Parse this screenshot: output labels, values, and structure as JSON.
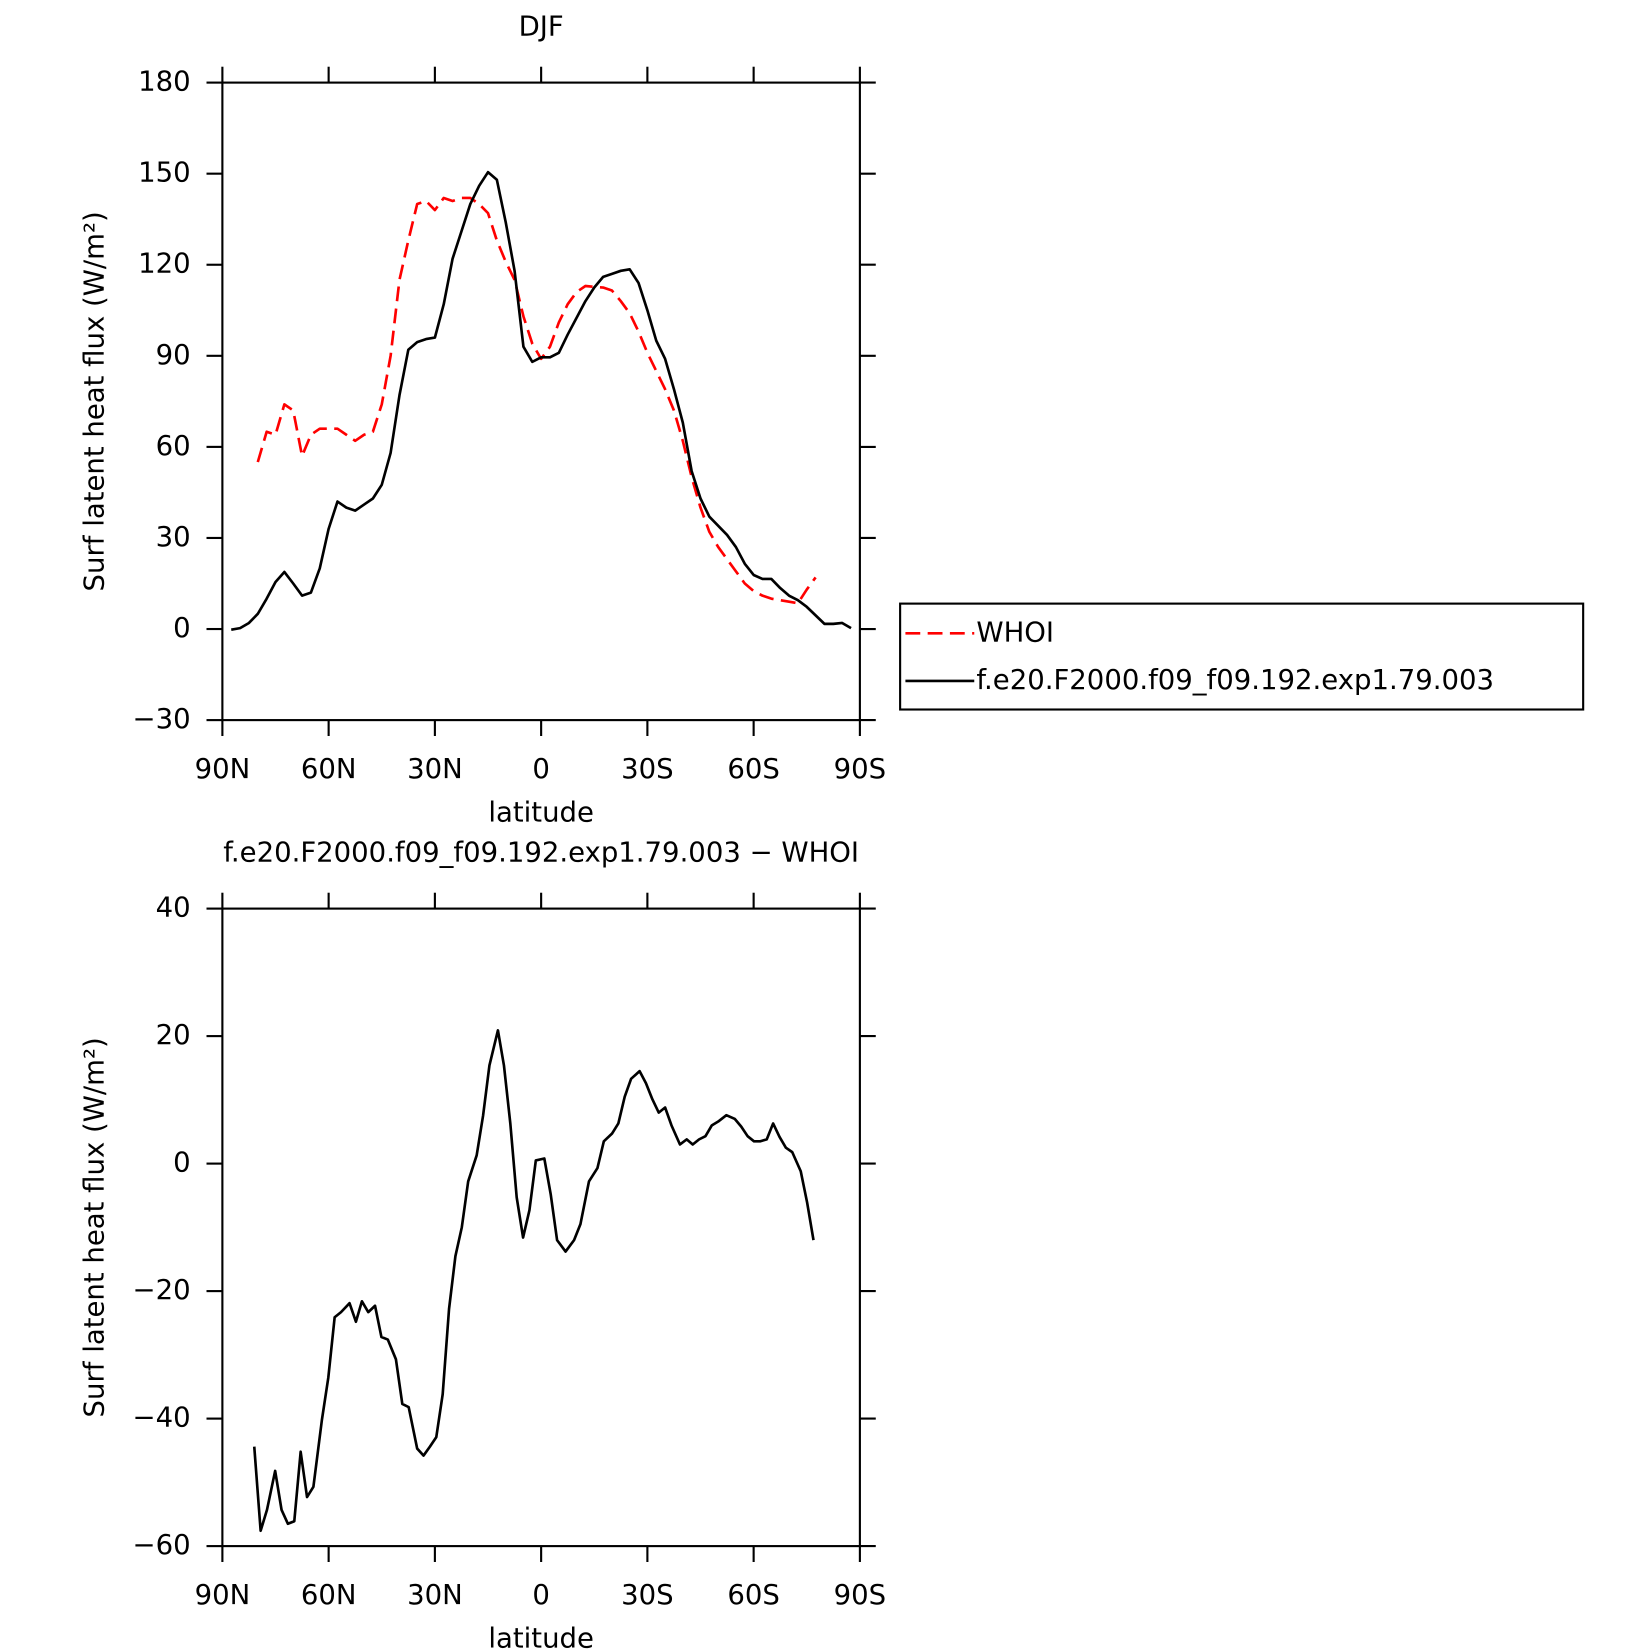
{
  "chart_data": [
    {
      "type": "line",
      "title": "DJF",
      "xlabel": "latitude",
      "ylabel": "Surf latent heat flux (W/m²)",
      "xlim": [
        90,
        -90
      ],
      "xticks": [
        {
          "value": 90,
          "label": "90N"
        },
        {
          "value": 60,
          "label": "60N"
        },
        {
          "value": 30,
          "label": "30N"
        },
        0,
        {
          "value": -30,
          "label": "30S"
        },
        {
          "value": -60,
          "label": "60S"
        },
        {
          "value": -90,
          "label": "90S"
        }
      ],
      "ylim": [
        -30,
        180
      ],
      "yticks": [
        {
          "value": -30,
          "label": "−30"
        },
        0,
        30,
        60,
        90,
        120,
        150,
        180
      ],
      "legend": "right",
      "x": [
        87.5,
        85,
        82.5,
        80,
        77.5,
        75,
        72.5,
        70,
        67.5,
        65,
        62.5,
        60,
        57.5,
        55,
        52.5,
        50,
        47.5,
        45,
        42.5,
        40,
        37.5,
        35,
        32.5,
        30,
        27.5,
        25,
        22.5,
        20,
        17.5,
        15,
        12.5,
        10,
        7.5,
        5,
        2.5,
        0,
        -2.5,
        -5,
        -7.5,
        -10,
        -12.5,
        -15,
        -17.5,
        -20,
        -22.5,
        -25,
        -27.5,
        -30,
        -32.5,
        -35,
        -37.5,
        -40,
        -42.5,
        -45,
        -47.5,
        -50,
        -52.5,
        -55,
        -57.5,
        -60,
        -62.5,
        -65,
        -67.5,
        -70,
        -72.5,
        -75,
        -77.5,
        -80,
        -82.5,
        -85,
        -87.5
      ],
      "series": [
        {
          "name": "WHOI",
          "color": "#ff0000",
          "linestyle": "dashed",
          "values": [
            null,
            null,
            null,
            55,
            65,
            64,
            74,
            72,
            57,
            64,
            66,
            66,
            66,
            64,
            62,
            64,
            65,
            74,
            90,
            115,
            128,
            140,
            141,
            138,
            142,
            141,
            142,
            142,
            140,
            137,
            128,
            121,
            115,
            103,
            94,
            89,
            93,
            101,
            107,
            111,
            113,
            112.7,
            112.5,
            111.5,
            108,
            104,
            98,
            91,
            85,
            79,
            72,
            62,
            50,
            40,
            32,
            27,
            23,
            19,
            15,
            12.5,
            11,
            10,
            9.5,
            9,
            8.5,
            13,
            17,
            null,
            null,
            null,
            null
          ]
        },
        {
          "name": "f.e20.F2000.f09_f09.192.exp1.79.003",
          "color": "#000000",
          "linestyle": "solid",
          "values": [
            -0.2,
            0.3,
            2,
            5,
            10,
            15.5,
            18.8,
            15,
            11,
            12,
            20,
            33,
            42,
            40,
            39,
            41,
            43,
            47.5,
            58,
            77,
            92,
            94.5,
            95.5,
            96,
            107,
            122,
            131,
            140,
            146,
            150.5,
            148,
            134,
            118,
            93,
            88,
            89.5,
            89.5,
            91,
            97,
            102.5,
            108,
            112.5,
            116,
            117,
            118,
            118.5,
            114,
            105,
            95,
            89,
            79,
            68,
            52,
            43,
            37,
            34,
            31,
            27,
            21.5,
            17.8,
            16.5,
            16.5,
            13.5,
            11,
            9.5,
            7.3,
            4.5,
            1.7,
            1.7,
            2,
            0.3
          ]
        }
      ]
    },
    {
      "type": "line",
      "title": "f.e20.F2000.f09_f09.192.exp1.79.003 − WHOI",
      "xlabel": "latitude",
      "ylabel": "Surf latent heat flux (W/m²)",
      "xlim": [
        90,
        -90
      ],
      "xticks": [
        {
          "value": 90,
          "label": "90N"
        },
        {
          "value": 60,
          "label": "60N"
        },
        {
          "value": 30,
          "label": "30N"
        },
        0,
        {
          "value": -30,
          "label": "30S"
        },
        {
          "value": -60,
          "label": "60S"
        },
        {
          "value": -90,
          "label": "90S"
        }
      ],
      "ylim": [
        -60,
        40
      ],
      "yticks": [
        {
          "value": -60,
          "label": "−60"
        },
        {
          "value": -40,
          "label": "−40"
        },
        {
          "value": -20,
          "label": "−20"
        },
        0,
        20,
        40
      ],
      "x": [
        81.0,
        79.2,
        77.4,
        75.1,
        73.3,
        71.5,
        69.7,
        67.9,
        66.1,
        64.3,
        61.9,
        60.1,
        58.3,
        56.5,
        54.1,
        52.3,
        50.6,
        48.8,
        46.9,
        45.1,
        43.3,
        41.0,
        39.2,
        37.4,
        35.0,
        33.2,
        31.4,
        29.6,
        27.8,
        26.0,
        24.2,
        22.4,
        20.6,
        18.2,
        16.4,
        14.6,
        12.2,
        10.5,
        8.7,
        6.9,
        5.1,
        3.3,
        1.5,
        -0.9,
        -2.7,
        -4.5,
        -6.9,
        -9.3,
        -11.1,
        -13.5,
        -15.9,
        -17.7,
        -20.0,
        -21.8,
        -23.6,
        -25.4,
        -27.8,
        -29.6,
        -31.4,
        -33.2,
        -35.0,
        -36.8,
        -39.2,
        -41.1,
        -42.8,
        -44.6,
        -46.4,
        -48.2,
        -50.0,
        -52.3,
        -54.7,
        -56.5,
        -58.3,
        -60.1,
        -61.9,
        -63.7,
        -65.5,
        -67.3,
        -69.1,
        -70.9,
        -73.3,
        -75.1,
        -76.9
      ],
      "series": [
        {
          "color": "#000000",
          "linestyle": "solid",
          "values": [
            -44.4,
            -57.6,
            -54.3,
            -48.2,
            -54.3,
            -56.5,
            -56.1,
            -45.2,
            -52.3,
            -50.7,
            -40.2,
            -33.6,
            -24.1,
            -23.3,
            -21.9,
            -24.8,
            -21.6,
            -23.3,
            -22.3,
            -27.2,
            -27.6,
            -30.7,
            -37.7,
            -38.2,
            -44.7,
            -45.8,
            -44.4,
            -42.9,
            -36.2,
            -22.8,
            -14.5,
            -10,
            -2.8,
            1.3,
            7.5,
            15.4,
            20.9,
            15.4,
            6.3,
            -5.3,
            -11.6,
            -7.3,
            0.5,
            0.8,
            -4.8,
            -12,
            -13.8,
            -12,
            -9.5,
            -2.8,
            -0.7,
            3.5,
            4.7,
            6.3,
            10.5,
            13.3,
            14.5,
            12.6,
            10.1,
            8,
            8.8,
            6,
            3,
            3.8,
            3,
            3.8,
            4.3,
            6,
            6.6,
            7.6,
            7,
            5.8,
            4.3,
            3.5,
            3.5,
            3.8,
            6.3,
            4.2,
            2.5,
            1.8,
            -1.2,
            -6.1,
            -12
          ]
        }
      ]
    }
  ]
}
